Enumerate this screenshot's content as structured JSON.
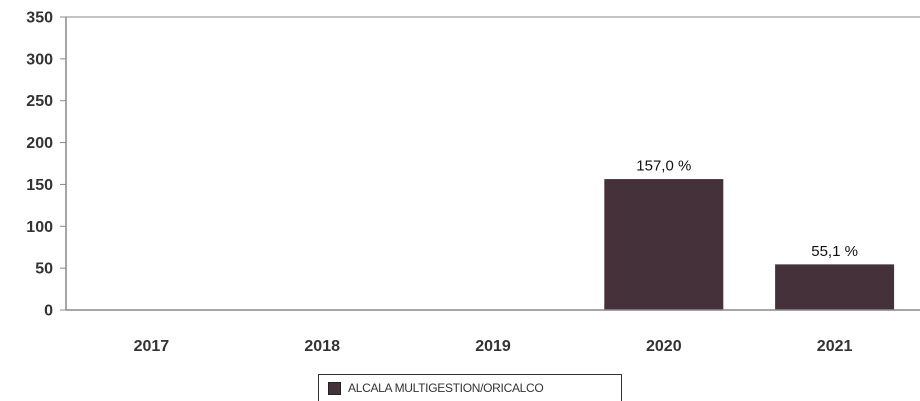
{
  "colors": {
    "bar": "#45313a",
    "axis": "#888888"
  },
  "chart_data": {
    "type": "bar",
    "categories": [
      "2017",
      "2018",
      "2019",
      "2020",
      "2021"
    ],
    "series": [
      {
        "name": "ALCALA MULTIGESTION/ORICALCO",
        "values": [
          null,
          null,
          null,
          157.0,
          55.1
        ],
        "data_labels": [
          "",
          "",
          "",
          "157,0 %",
          "55,1 %"
        ]
      }
    ],
    "ylim": [
      0,
      350
    ],
    "yticks": [
      0,
      50,
      100,
      150,
      200,
      250,
      300,
      350
    ],
    "grid": false,
    "legend": "bottom-center"
  }
}
